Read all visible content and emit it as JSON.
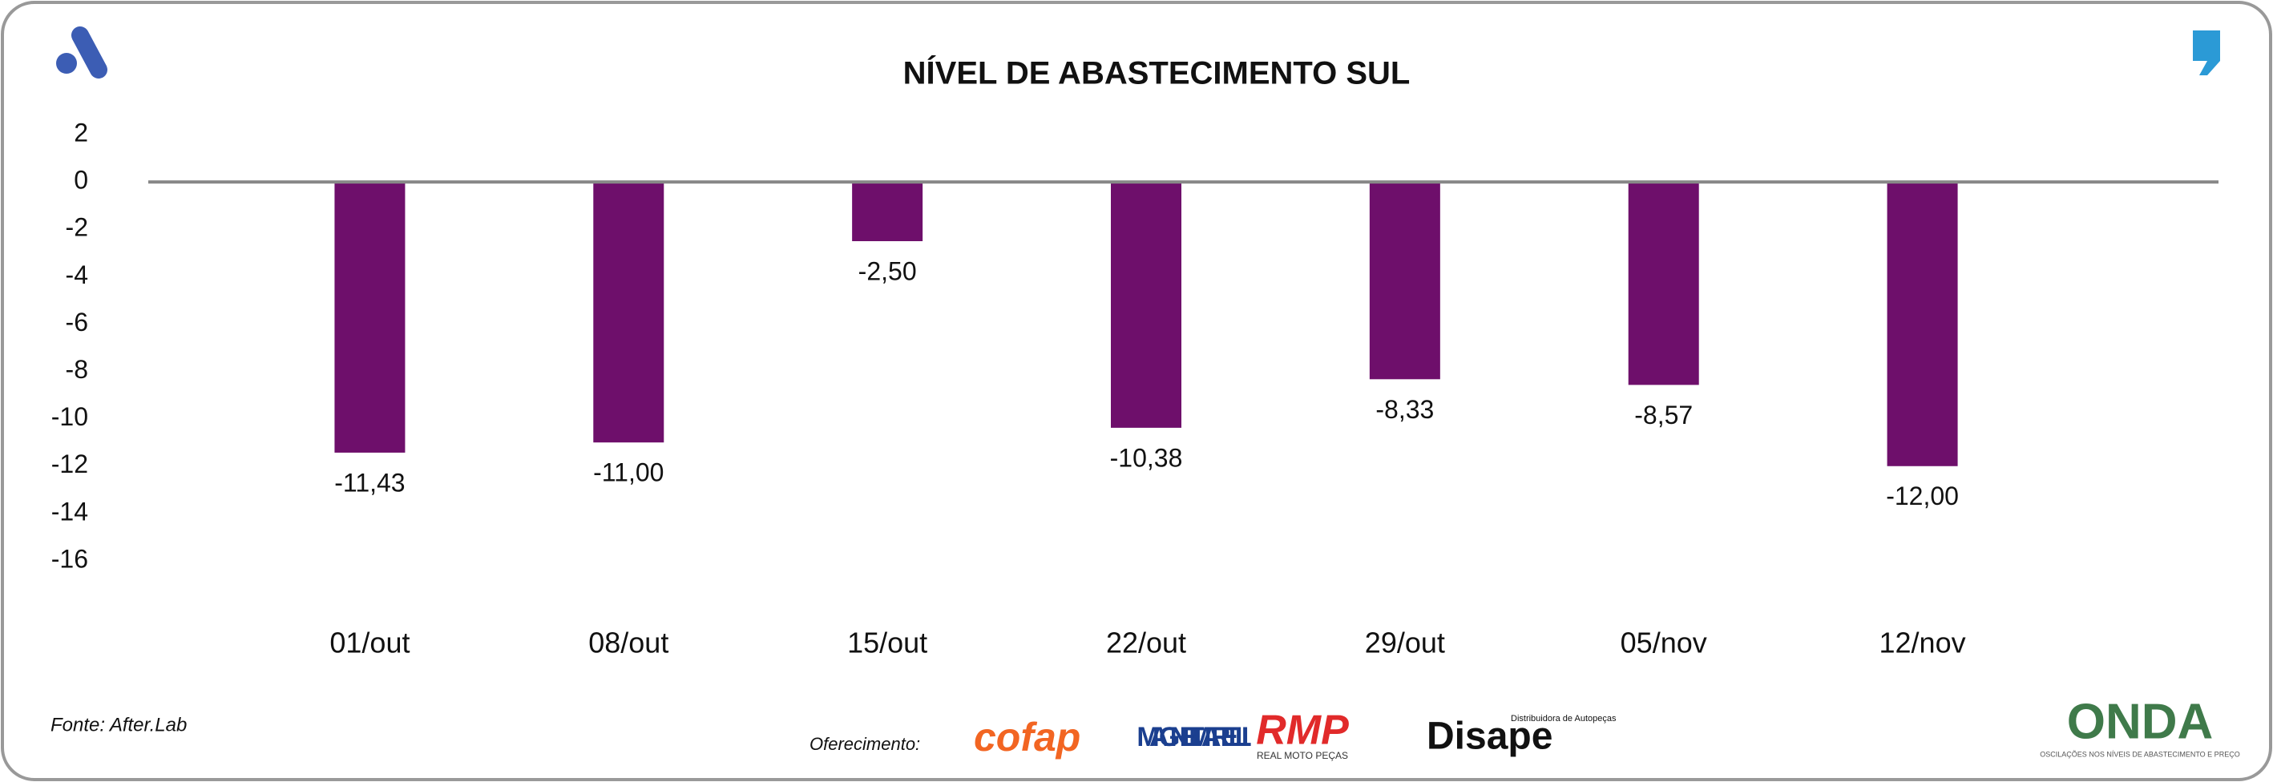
{
  "chart_data": {
    "type": "bar",
    "title": "NÍVEL DE ABASTECIMENTO SUL",
    "categories": [
      "01/out",
      "08/out",
      "15/out",
      "22/out",
      "29/out",
      "05/nov",
      "12/nov"
    ],
    "values": [
      -11.43,
      -11,
      -2.5,
      -10.38,
      -8.33,
      -8.57,
      -12
    ],
    "value_labels": [
      "-11,43",
      "-11,00",
      "-2,50",
      "-10,38",
      "-8,33",
      "-8,57",
      "-12,00"
    ],
    "color": "#6e0f6b",
    "ylim": [
      -16,
      2
    ],
    "yticks": [
      2,
      0,
      -2,
      -4,
      -6,
      -8,
      -10,
      -12,
      -14,
      -16
    ],
    "grid": false
  },
  "footer": {
    "source": "Fonte: After.Lab",
    "sponsor_label": "Oferecimento:",
    "sponsors": [
      "cofap",
      "MAGNETI MARELLI",
      "RMP",
      "REAL MOTO PEÇAS",
      "Disape",
      "Distribuidora de Autopeças"
    ],
    "brand": "ONDA",
    "brand_tagline": "OSCILAÇÕES NOS NÍVEIS DE ABASTECIMENTO E PREÇO"
  }
}
